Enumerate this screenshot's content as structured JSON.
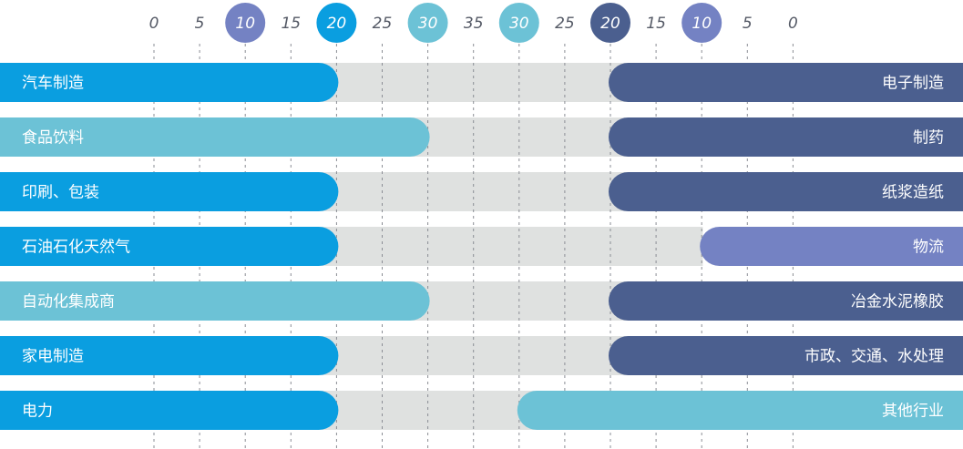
{
  "chart_data": {
    "type": "bar",
    "orientation": "horizontal-diverging",
    "axis": {
      "ticks": [
        "0",
        "5",
        "10",
        "15",
        "20",
        "25",
        "30",
        "35",
        "30",
        "25",
        "20",
        "15",
        "10",
        "5",
        "0"
      ],
      "highlighted": [
        {
          "index": 2,
          "color": "#7482c3"
        },
        {
          "index": 4,
          "color": "#0a9ee0"
        },
        {
          "index": 6,
          "color": "#6cc2d6"
        },
        {
          "index": 8,
          "color": "#6cc2d6"
        },
        {
          "index": 10,
          "color": "#4b5f8f"
        },
        {
          "index": 12,
          "color": "#7482c3"
        }
      ]
    },
    "rows": [
      {
        "left": {
          "label": "汽车制造",
          "value": 20,
          "color": "#0a9ee0"
        },
        "right": {
          "label": "电子制造",
          "value": 20,
          "color": "#4b5f8f"
        }
      },
      {
        "left": {
          "label": "食品饮料",
          "value": 30,
          "color": "#6cc2d6"
        },
        "right": {
          "label": "制药",
          "value": 20,
          "color": "#4b5f8f"
        }
      },
      {
        "left": {
          "label": "印刷、包装",
          "value": 20,
          "color": "#0a9ee0"
        },
        "right": {
          "label": "纸浆造纸",
          "value": 20,
          "color": "#4b5f8f"
        }
      },
      {
        "left": {
          "label": "石油石化天然气",
          "value": 20,
          "color": "#0a9ee0"
        },
        "right": {
          "label": "物流",
          "value": 10,
          "color": "#7482c3"
        }
      },
      {
        "left": {
          "label": "自动化集成商",
          "value": 30,
          "color": "#6cc2d6"
        },
        "right": {
          "label": "冶金水泥橡胶",
          "value": 20,
          "color": "#4b5f8f"
        }
      },
      {
        "left": {
          "label": "家电制造",
          "value": 20,
          "color": "#0a9ee0"
        },
        "right": {
          "label": "市政、交通、水处理",
          "value": 20,
          "color": "#4b5f8f"
        }
      },
      {
        "left": {
          "label": "电力",
          "value": 20,
          "color": "#0a9ee0"
        },
        "right": {
          "label": "其他行业",
          "value": 30,
          "color": "#6cc2d6"
        }
      }
    ],
    "track_color": "#dfe1e0",
    "grid": "dashed-vertical"
  }
}
